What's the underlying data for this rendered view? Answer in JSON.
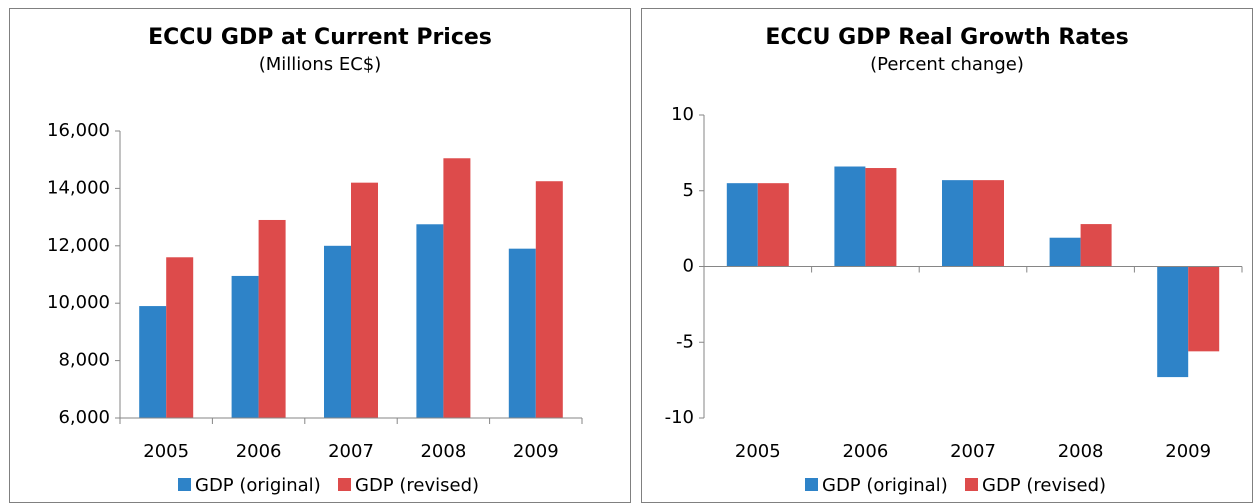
{
  "chart_data": [
    {
      "type": "bar",
      "title": "ECCU GDP at Current Prices",
      "subtitle": "(Millions EC$)",
      "categories": [
        "2005",
        "2006",
        "2007",
        "2008",
        "2009"
      ],
      "series": [
        {
          "name": "GDP (original)",
          "color": "#2e83c8",
          "values": [
            9900,
            10950,
            12000,
            12750,
            11900
          ]
        },
        {
          "name": "GDP (revised)",
          "color": "#dd4b4b",
          "values": [
            11600,
            12900,
            14200,
            15050,
            14250
          ]
        }
      ],
      "ylim": [
        6000,
        16000
      ],
      "yticks": [
        {
          "value": 6000,
          "label": "6,000"
        },
        {
          "value": 8000,
          "label": "8,000"
        },
        {
          "value": 10000,
          "label": "10,000"
        },
        {
          "value": 12000,
          "label": "12,000"
        },
        {
          "value": 14000,
          "label": "14,000"
        },
        {
          "value": 16000,
          "label": "16,000"
        }
      ],
      "grid": false,
      "legend": "bottom"
    },
    {
      "type": "bar",
      "title": "ECCU GDP Real Growth Rates",
      "subtitle": "(Percent change)",
      "categories": [
        "2005",
        "2006",
        "2007",
        "2008",
        "2009"
      ],
      "series": [
        {
          "name": "GDP (original)",
          "color": "#2e83c8",
          "values": [
            5.5,
            6.6,
            5.7,
            1.9,
            -7.3
          ]
        },
        {
          "name": "GDP (revised)",
          "color": "#dd4b4b",
          "values": [
            5.5,
            6.5,
            5.7,
            2.8,
            -5.6
          ]
        }
      ],
      "ylim": [
        -10,
        10
      ],
      "yticks": [
        -10,
        -5,
        0,
        5,
        10
      ],
      "grid": false,
      "legend": "bottom"
    }
  ]
}
